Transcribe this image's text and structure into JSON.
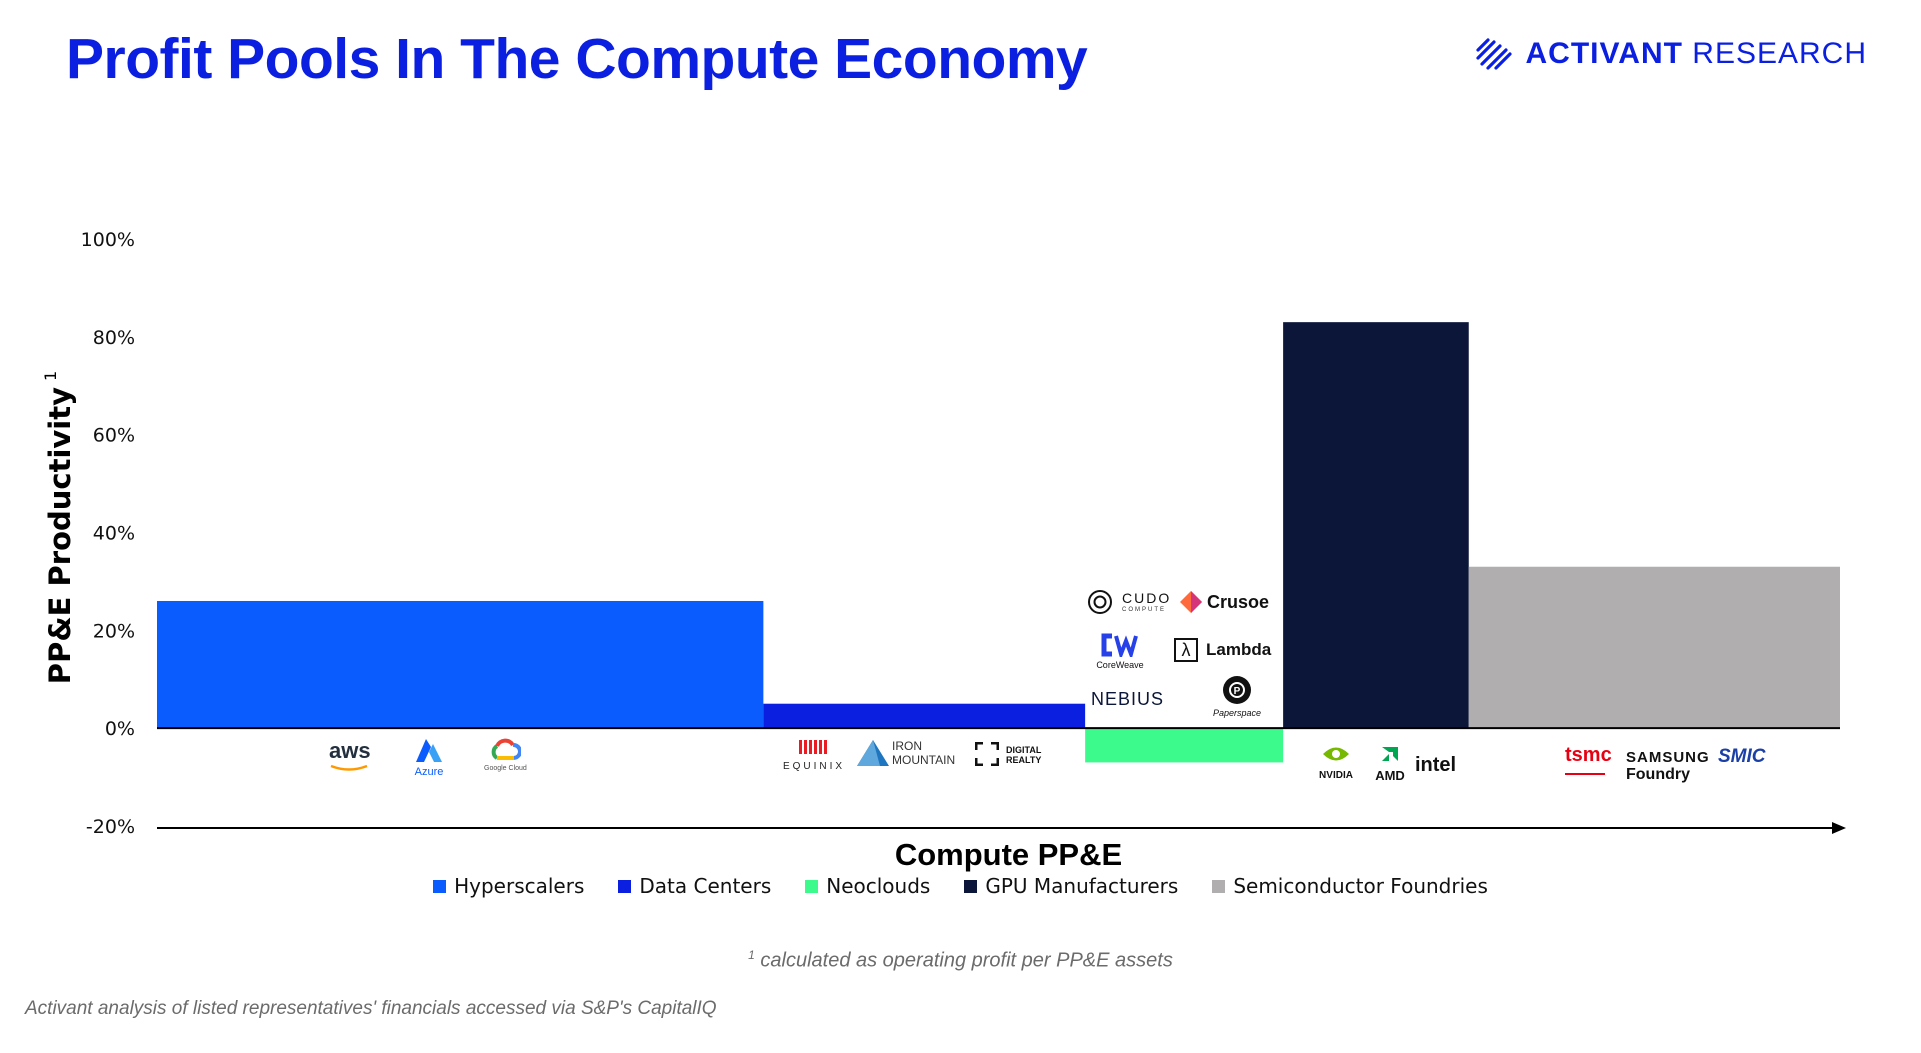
{
  "header": {
    "title": "Profit Pools In The Compute Economy",
    "brand_bold": "ACTIVANT",
    "brand_light": "RESEARCH"
  },
  "chart_data": {
    "type": "bar",
    "subtype": "variable-width (marimekko-style)",
    "xlabel": "Compute PP&E",
    "ylabel": "PP&E Productivity",
    "ylabel_superscript": "1",
    "ylim": [
      -20,
      100
    ],
    "yticks": [
      -20,
      0,
      20,
      40,
      60,
      80,
      100
    ],
    "ytick_suffix": "%",
    "grid": false,
    "legend_position": "bottom",
    "categories": [
      "Hyperscalers",
      "Data Centers",
      "Neoclouds",
      "GPU Manufacturers",
      "Semiconductor Foundries"
    ],
    "values": [
      26,
      5,
      -7,
      83,
      33
    ],
    "widths": [
      49,
      26,
      16,
      15,
      30
    ],
    "colors": [
      "#0a5cff",
      "#0a1fe0",
      "#3cfb8c",
      "#0b1638",
      "#b0aeae"
    ],
    "representatives": [
      [
        "aws",
        "Azure",
        "Google Cloud"
      ],
      [
        "EQUINIX",
        "IRON MOUNTAIN",
        "DIGITAL REALTY"
      ],
      [
        "CUDO COMPUTE",
        "Crusoe",
        "CoreWeave",
        "Lambda",
        "NEBIUS",
        "Paperspace"
      ],
      [
        "NVIDIA",
        "AMD",
        "intel"
      ],
      [
        "tsmc",
        "SAMSUNG Foundry",
        "SMIC"
      ]
    ]
  },
  "logos": {
    "aws": "aws",
    "azure": "Azure",
    "google": "Google Cloud",
    "equinix": "EQUINIX",
    "iron_mountain_1": "IRON",
    "iron_mountain_2": "MOUNTAIN",
    "digital_realty_1": "DIGITAL",
    "digital_realty_2": "REALTY",
    "cudo_1": "CUDO",
    "cudo_2": "COMPUTE",
    "crusoe": "Crusoe",
    "coreweave": "CoreWeave",
    "lambda": "Lambda",
    "nebius": "NEBIUS",
    "paperspace": "Paperspace",
    "nvidia": "NVIDIA",
    "amd": "AMD",
    "intel": "intel",
    "tsmc": "tsmc",
    "samsung_1": "SAMSUNG",
    "samsung_2": "Foundry",
    "smic": "SMIC"
  },
  "footnote": {
    "marker": "1",
    "text": "calculated as operating profit per PP&E assets"
  },
  "source": "Activant analysis of listed representatives' financials accessed via S&P's CapitalIQ"
}
